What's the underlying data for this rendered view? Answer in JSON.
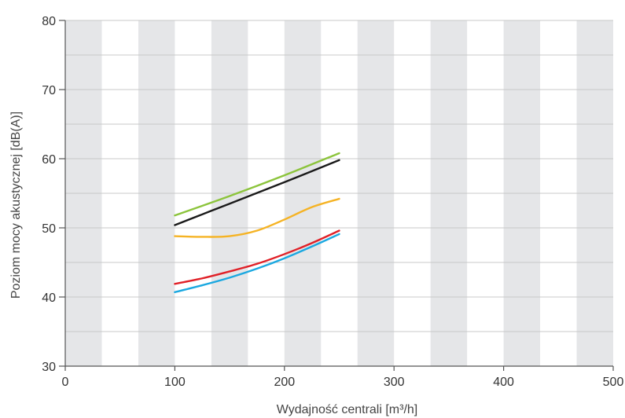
{
  "chart_data": {
    "type": "line",
    "title": "",
    "xlabel": "Wydajność centrali [m³/h]",
    "ylabel": "Poziom mocy akustycznej [dB(A)]",
    "xlim": [
      0,
      500
    ],
    "ylim": [
      30,
      80
    ],
    "x_ticks": [
      "0",
      "100",
      "200",
      "300",
      "400",
      "500"
    ],
    "y_ticks": [
      "30",
      "40",
      "50",
      "60",
      "70",
      "80"
    ],
    "grid": true,
    "background": "alternating vertical gray bands",
    "colors": {
      "band": "#e5e6e8",
      "grid": "#c8c8c8",
      "axis": "#555555"
    },
    "series": [
      {
        "color": "#8cc43c",
        "x": [
          100,
          150,
          200,
          250
        ],
        "y": [
          51.8,
          54.6,
          57.6,
          60.8
        ]
      },
      {
        "color": "#1a1a1a",
        "x": [
          100,
          150,
          200,
          250
        ],
        "y": [
          50.4,
          53.5,
          56.6,
          59.8
        ]
      },
      {
        "color": "#f5b324",
        "x": [
          100,
          125,
          150,
          175,
          200,
          225,
          250
        ],
        "y": [
          48.8,
          48.7,
          48.8,
          49.6,
          51.2,
          53.0,
          54.2
        ]
      },
      {
        "color": "#e02027",
        "x": [
          100,
          125,
          150,
          175,
          200,
          225,
          250
        ],
        "y": [
          41.9,
          42.7,
          43.7,
          44.8,
          46.2,
          47.8,
          49.6
        ]
      },
      {
        "color": "#1ba8e0",
        "x": [
          100,
          125,
          150,
          175,
          200,
          225,
          250
        ],
        "y": [
          40.7,
          41.7,
          42.8,
          44.1,
          45.6,
          47.3,
          49.1
        ]
      }
    ]
  }
}
